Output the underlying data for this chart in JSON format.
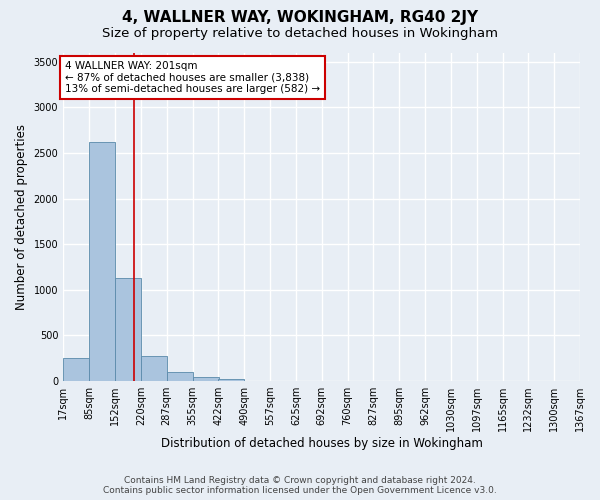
{
  "title": "4, WALLNER WAY, WOKINGHAM, RG40 2JY",
  "subtitle": "Size of property relative to detached houses in Wokingham",
  "xlabel": "Distribution of detached houses by size in Wokingham",
  "ylabel": "Number of detached properties",
  "footer_line1": "Contains HM Land Registry data © Crown copyright and database right 2024.",
  "footer_line2": "Contains public sector information licensed under the Open Government Licence v3.0.",
  "bins": [
    17,
    85,
    152,
    220,
    287,
    355,
    422,
    490,
    557,
    625,
    692,
    760,
    827,
    895,
    962,
    1030,
    1097,
    1165,
    1232,
    1300,
    1367
  ],
  "bin_labels": [
    "17sqm",
    "85sqm",
    "152sqm",
    "220sqm",
    "287sqm",
    "355sqm",
    "422sqm",
    "490sqm",
    "557sqm",
    "625sqm",
    "692sqm",
    "760sqm",
    "827sqm",
    "895sqm",
    "962sqm",
    "1030sqm",
    "1097sqm",
    "1165sqm",
    "1232sqm",
    "1300sqm",
    "1367sqm"
  ],
  "bar_heights": [
    250,
    2620,
    1130,
    270,
    100,
    50,
    20,
    0,
    0,
    0,
    0,
    0,
    0,
    0,
    0,
    0,
    0,
    0,
    0,
    0
  ],
  "bar_color": "#aac4de",
  "bar_edge_color": "#5a8aaa",
  "property_size": 201,
  "vline_color": "#cc0000",
  "annotation_text": "4 WALLNER WAY: 201sqm\n← 87% of detached houses are smaller (3,838)\n13% of semi-detached houses are larger (582) →",
  "annotation_box_color": "#ffffff",
  "annotation_box_edge_color": "#cc0000",
  "ylim": [
    0,
    3600
  ],
  "yticks": [
    0,
    500,
    1000,
    1500,
    2000,
    2500,
    3000,
    3500
  ],
  "bg_color": "#e8eef5",
  "grid_color": "#ffffff",
  "title_fontsize": 11,
  "subtitle_fontsize": 9.5,
  "label_fontsize": 8.5,
  "tick_fontsize": 7,
  "annotation_fontsize": 7.5,
  "footer_fontsize": 6.5
}
